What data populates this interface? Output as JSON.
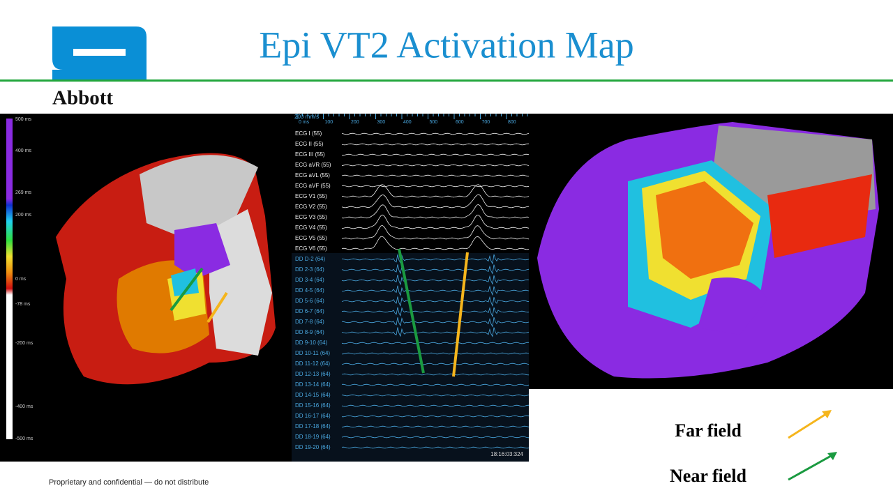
{
  "header": {
    "title": "Epi VT2 Activation Map",
    "logo_text": "Abbott"
  },
  "footer": {
    "text": "Proprietary and confidential — do not distribute"
  },
  "legend": {
    "items": [
      {
        "label": "Far field"
      },
      {
        "label": "Near field"
      }
    ]
  },
  "map_left": {
    "colorbar_labels": [
      "500 ms",
      "400 ms",
      "269 ms",
      "200 ms",
      "0 ms",
      "-78 ms",
      "-200 ms",
      "-400 ms",
      "-500 ms"
    ]
  },
  "egm": {
    "speed": "200 mm/s",
    "time_ticks": [
      "0 ms",
      "100",
      "200",
      "300",
      "400",
      "500",
      "600",
      "700",
      "800"
    ],
    "channels": [
      "ECG I (55)",
      "ECG II (55)",
      "ECG III (55)",
      "ECG aVR (55)",
      "ECG aVL (55)",
      "ECG aVF (55)",
      "ECG V1 (55)",
      "ECG V2 (55)",
      "ECG V3 (55)",
      "ECG V4 (55)",
      "ECG V5 (55)",
      "ECG V6 (55)",
      "DD D-2 (64)",
      "DD 2-3 (64)",
      "DD 3-4 (64)",
      "DD 4-5 (64)",
      "DD 5-6 (64)",
      "DD 6-7 (64)",
      "DD 7-8 (64)",
      "DD 8-9 (64)",
      "DD 9-10 (64)",
      "DD 10-11 (64)",
      "DD 11-12 (64)",
      "DD 12-13 (64)",
      "DD 13-14 (64)",
      "DD 14-15 (64)",
      "DD 15-16 (64)",
      "DD 16-17 (64)",
      "DD 17-18 (64)",
      "DD 18-19 (64)",
      "DD 19-20 (64)"
    ],
    "timestamp": "18:16:03:324"
  }
}
